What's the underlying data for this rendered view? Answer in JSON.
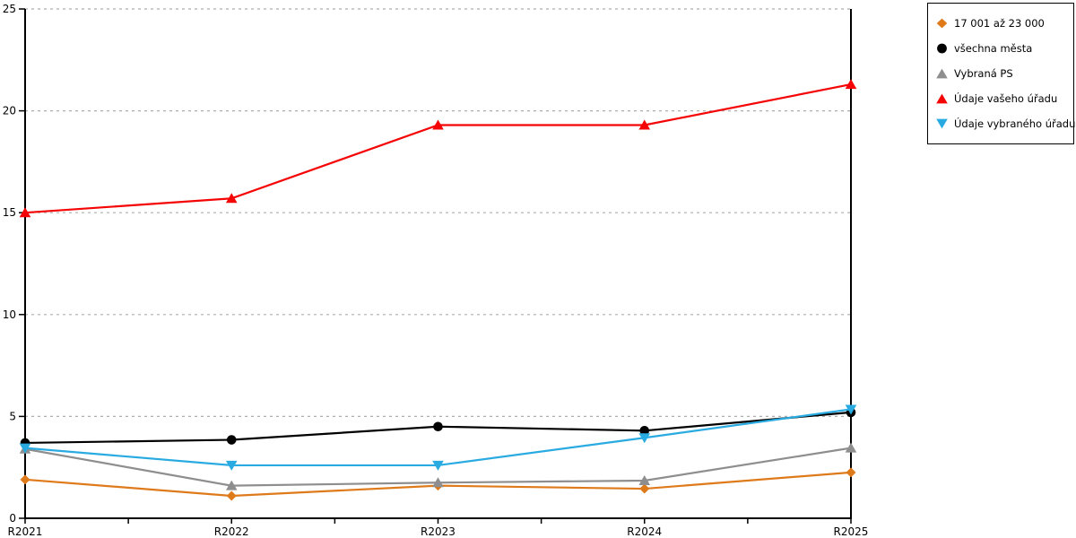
{
  "chart_data": {
    "type": "line",
    "title": "",
    "xlabel": "",
    "ylabel": "",
    "categories": [
      "R2021",
      "R2022",
      "R2023",
      "R2024",
      "R2025"
    ],
    "y_axis": {
      "min": 0,
      "max": 25,
      "ticks": [
        0,
        5,
        10,
        15,
        20,
        25
      ]
    },
    "grid": {
      "horizontal": "dashed",
      "color": "#ADADAD"
    },
    "legend_position": "outside-top-right",
    "series": [
      {
        "id": "size-band-17001-23000",
        "name": "17 001 až 23 000",
        "marker": "diamond",
        "color": "#DF7A1B",
        "values": [
          1.9,
          1.1,
          1.6,
          1.45,
          2.25
        ]
      },
      {
        "id": "all-cities",
        "name": "všechna města",
        "marker": "circle",
        "color": "#000000",
        "values": [
          3.7,
          3.85,
          4.5,
          4.3,
          5.2
        ]
      },
      {
        "id": "selected-ps",
        "name": "Vybraná PS",
        "marker": "triangle-up",
        "color": "#8E8E8E",
        "values": [
          3.4,
          1.6,
          1.75,
          1.85,
          3.45
        ]
      },
      {
        "id": "your-office",
        "name": "Údaje vašeho úřadu",
        "marker": "triangle-up",
        "color": "#F40404",
        "values": [
          15,
          15.7,
          19.3,
          19.3,
          21.3
        ]
      },
      {
        "id": "selected-office",
        "name": "Údaje vybraného úřadu",
        "marker": "triangle-down",
        "color": "#29ABE2",
        "values": [
          3.45,
          2.6,
          2.6,
          3.95,
          5.35
        ]
      }
    ]
  },
  "colors": {
    "axis": "#000000",
    "grid": "#ADADAD",
    "background": "#FFFFFF",
    "tick_label": "#000000"
  }
}
